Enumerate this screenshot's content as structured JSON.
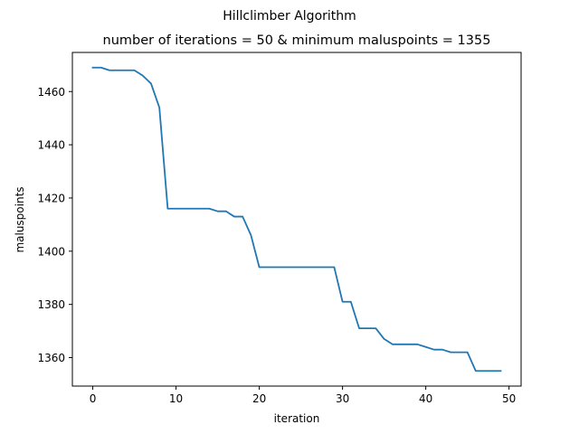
{
  "chart_data": {
    "type": "line",
    "suptitle": "Hillclimber Algorithm",
    "title": "number of iterations = 50 & minimum maluspoints = 1355",
    "xlabel": "iteration",
    "ylabel": "maluspoints",
    "xlim": [
      -2.45,
      51.45
    ],
    "ylim": [
      1349.3,
      1474.7
    ],
    "xticks": [
      0,
      10,
      20,
      30,
      40,
      50
    ],
    "yticks": [
      1360,
      1380,
      1400,
      1420,
      1440,
      1460
    ],
    "grid": false,
    "line_color": "#1f77b4",
    "series": [
      {
        "x": [
          0,
          1,
          2,
          3,
          4,
          5,
          6,
          7,
          8,
          9,
          10,
          11,
          12,
          13,
          14,
          15,
          16,
          17,
          18,
          19,
          20,
          21,
          22,
          23,
          24,
          25,
          26,
          27,
          28,
          29,
          30,
          31,
          32,
          33,
          34,
          35,
          36,
          37,
          38,
          39,
          40,
          41,
          42,
          43,
          44,
          45,
          46,
          47,
          48,
          49
        ],
        "values": [
          1469,
          1469,
          1468,
          1468,
          1468,
          1468,
          1466,
          1463,
          1454,
          1416,
          1416,
          1416,
          1416,
          1416,
          1416,
          1415,
          1415,
          1413,
          1413,
          1406,
          1394,
          1394,
          1394,
          1394,
          1394,
          1394,
          1394,
          1394,
          1394,
          1394,
          1381,
          1381,
          1371,
          1371,
          1371,
          1367,
          1365,
          1365,
          1365,
          1365,
          1364,
          1363,
          1363,
          1362,
          1362,
          1362,
          1355,
          1355,
          1355,
          1355
        ]
      }
    ]
  }
}
